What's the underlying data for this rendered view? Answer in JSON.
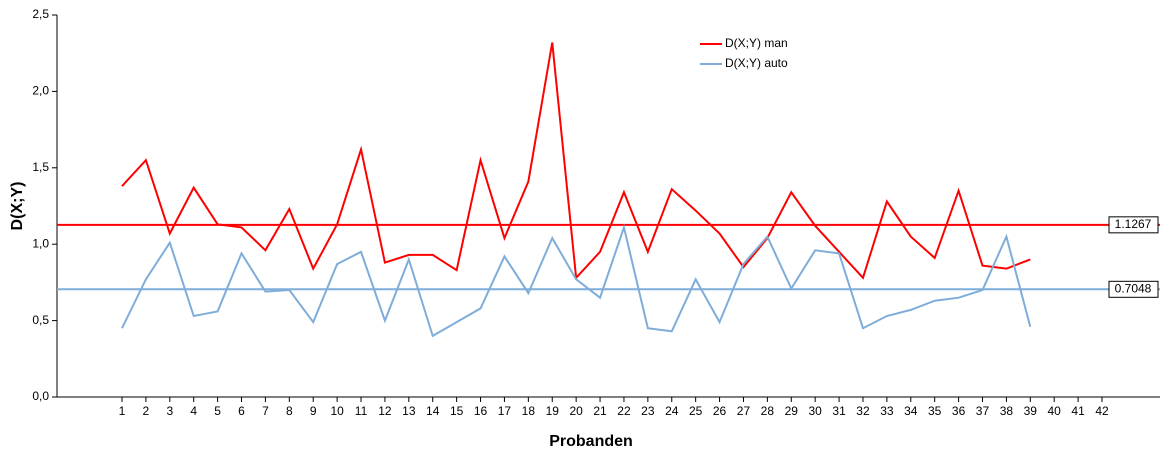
{
  "chart_data": {
    "type": "line",
    "x_label": "Probanden",
    "y_label": "D(X;Y)",
    "categories": [
      "1",
      "2",
      "3",
      "4",
      "5",
      "6",
      "7",
      "8",
      "9",
      "10",
      "11",
      "12",
      "13",
      "14",
      "15",
      "16",
      "17",
      "18",
      "19",
      "20",
      "21",
      "22",
      "23",
      "24",
      "25",
      "26",
      "27",
      "28",
      "29",
      "30",
      "31",
      "32",
      "33",
      "34",
      "35",
      "36",
      "37",
      "38",
      "39",
      "40",
      "41",
      "42"
    ],
    "series": [
      {
        "name": "D(X;Y) man",
        "color": "#ff0000",
        "values": [
          1.38,
          1.55,
          1.07,
          1.37,
          1.13,
          1.11,
          0.96,
          1.23,
          0.84,
          1.13,
          1.62,
          0.88,
          0.93,
          0.93,
          0.83,
          1.55,
          1.04,
          1.41,
          2.32,
          0.78,
          0.95,
          1.34,
          0.95,
          1.36,
          1.22,
          1.07,
          0.85,
          1.04,
          1.34,
          1.12,
          0.95,
          0.78,
          1.28,
          1.05,
          0.91,
          1.35,
          0.86,
          0.84,
          0.9,
          null,
          null,
          null
        ]
      },
      {
        "name": "D(X;Y) auto",
        "color": "#7fadd9",
        "values": [
          0.45,
          0.77,
          1.01,
          0.53,
          0.56,
          0.94,
          0.69,
          0.7,
          0.49,
          0.87,
          0.95,
          0.5,
          0.9,
          0.4,
          0.49,
          0.58,
          0.92,
          0.68,
          1.04,
          0.77,
          0.65,
          1.11,
          0.45,
          0.43,
          0.77,
          0.49,
          0.87,
          1.05,
          0.71,
          0.96,
          0.94,
          0.45,
          0.53,
          0.57,
          0.63,
          0.65,
          0.7,
          1.05,
          0.46,
          null,
          null,
          null
        ]
      }
    ],
    "reference_lines": [
      {
        "value": 1.1267,
        "color": "#ff0000"
      },
      {
        "value": 0.7048,
        "color": "#7fadd9"
      }
    ],
    "ylim": [
      0,
      2.5
    ],
    "yticks": [
      {
        "value": 0,
        "label": "0,0"
      },
      {
        "value": 0.5,
        "label": "0,5"
      },
      {
        "value": 1,
        "label": "1,0"
      },
      {
        "value": 1.5,
        "label": "1,5"
      },
      {
        "value": 2,
        "label": "2,0"
      },
      {
        "value": 2.5,
        "label": "2,5"
      }
    ],
    "legend": "top"
  }
}
